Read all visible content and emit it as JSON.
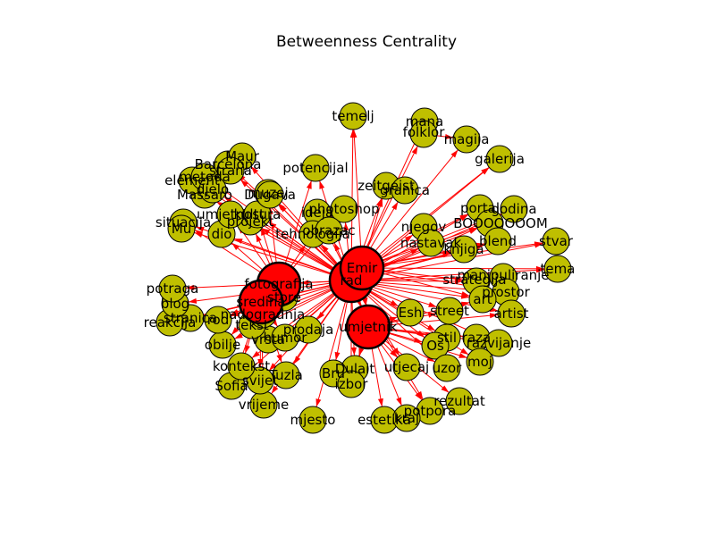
{
  "title": "Betweenness Centrality",
  "colors": {
    "hub_fill": "#ff0000",
    "leaf_fill": "#bfbf00",
    "edge": "#ff0000",
    "outline": "#000000"
  },
  "nodes": [
    {
      "id": "rad",
      "label": "rad",
      "type": "hub"
    },
    {
      "id": "emir",
      "label": "Emir",
      "type": "hub"
    },
    {
      "id": "umjetnik",
      "label": "umjetnik",
      "type": "hub"
    },
    {
      "id": "fotografija",
      "label": "fotografija",
      "type": "hub"
    },
    {
      "id": "sredina",
      "label": "sredina",
      "type": "hub"
    },
    {
      "id": "temelj",
      "label": "temelj",
      "type": "leaf"
    },
    {
      "id": "mana",
      "label": "mana",
      "type": "leaf"
    },
    {
      "id": "folklor",
      "label": "folklor",
      "type": "leaf"
    },
    {
      "id": "magija",
      "label": "magija",
      "type": "leaf"
    },
    {
      "id": "galerija",
      "label": "galerija",
      "type": "leaf"
    },
    {
      "id": "potencijal",
      "label": "potencijal",
      "type": "leaf"
    },
    {
      "id": "zeitgeist",
      "label": "zeitgeist",
      "type": "leaf"
    },
    {
      "id": "granica",
      "label": "granica",
      "type": "leaf"
    },
    {
      "id": "photoshop",
      "label": "photoshop",
      "type": "leaf"
    },
    {
      "id": "ideja",
      "label": "ideja",
      "type": "leaf"
    },
    {
      "id": "tehnologija",
      "label": "tehnologija",
      "type": "leaf"
    },
    {
      "id": "obrazac",
      "label": "obrazac",
      "type": "leaf"
    },
    {
      "id": "portal",
      "label": "portal",
      "type": "leaf"
    },
    {
      "id": "godina",
      "label": "godina",
      "type": "leaf"
    },
    {
      "id": "booom",
      "label": "BOOOOOOOM",
      "type": "leaf"
    },
    {
      "id": "njegov",
      "label": "njegov",
      "type": "leaf"
    },
    {
      "id": "nastavak",
      "label": "nastavak",
      "type": "leaf"
    },
    {
      "id": "knjiga",
      "label": "knjiga",
      "type": "leaf"
    },
    {
      "id": "blend",
      "label": "blend",
      "type": "leaf"
    },
    {
      "id": "stvar",
      "label": "stvar",
      "type": "leaf"
    },
    {
      "id": "tema",
      "label": "tema",
      "type": "leaf"
    },
    {
      "id": "manipuliranje",
      "label": "manipuliranje",
      "type": "leaf"
    },
    {
      "id": "strategija",
      "label": "strategija",
      "type": "leaf"
    },
    {
      "id": "prostor",
      "label": "prostor",
      "type": "leaf"
    },
    {
      "id": "art",
      "label": "art",
      "type": "leaf"
    },
    {
      "id": "artist",
      "label": "artist",
      "type": "leaf"
    },
    {
      "id": "esh",
      "label": "Esh",
      "type": "leaf"
    },
    {
      "id": "street",
      "label": "street",
      "type": "leaf"
    },
    {
      "id": "stil",
      "label": "stil",
      "type": "leaf"
    },
    {
      "id": "razno",
      "label": "raza",
      "type": "leaf"
    },
    {
      "id": "os",
      "label": "Os",
      "type": "leaf"
    },
    {
      "id": "razvijanje",
      "label": "razvijanje",
      "type": "leaf"
    },
    {
      "id": "moj",
      "label": "moj",
      "type": "leaf"
    },
    {
      "id": "utjecaj",
      "label": "utjecaj",
      "type": "leaf"
    },
    {
      "id": "uzor",
      "label": "uzor",
      "type": "leaf"
    },
    {
      "id": "rezultat",
      "label": "rezultat",
      "type": "leaf"
    },
    {
      "id": "potpora",
      "label": "potpora",
      "type": "leaf"
    },
    {
      "id": "estetika",
      "label": "estetika",
      "type": "leaf"
    },
    {
      "id": "kraj",
      "label": "kraj",
      "type": "leaf"
    },
    {
      "id": "dulat",
      "label": "Dulait",
      "type": "leaf"
    },
    {
      "id": "bruno",
      "label": "Bru",
      "type": "leaf"
    },
    {
      "id": "izbor",
      "label": "izbor",
      "type": "leaf"
    },
    {
      "id": "mjesto",
      "label": "mjesto",
      "type": "leaf"
    },
    {
      "id": "vrijeme",
      "label": "vrijeme",
      "type": "leaf"
    },
    {
      "id": "tuzla",
      "label": "Tuzla",
      "type": "leaf"
    },
    {
      "id": "svijet",
      "label": "svijet",
      "type": "leaf"
    },
    {
      "id": "sofia",
      "label": "Sofia",
      "type": "leaf"
    },
    {
      "id": "kontekst",
      "label": "kontekst",
      "type": "leaf"
    },
    {
      "id": "obilje",
      "label": "obilje",
      "type": "leaf"
    },
    {
      "id": "vrsta",
      "label": "vrsta",
      "type": "leaf"
    },
    {
      "id": "humor",
      "label": "humor",
      "type": "leaf"
    },
    {
      "id": "prodaja",
      "label": "prodaja",
      "type": "leaf"
    },
    {
      "id": "store",
      "label": "store",
      "type": "leaf"
    },
    {
      "id": "tekst",
      "label": "tekst",
      "type": "leaf"
    },
    {
      "id": "nadogradnja",
      "label": "nadogradnja",
      "type": "leaf"
    },
    {
      "id": "rod",
      "label": "rod",
      "type": "leaf"
    },
    {
      "id": "strana",
      "label": "stranica",
      "type": "leaf"
    },
    {
      "id": "reakcija",
      "label": "reakcija",
      "type": "leaf"
    },
    {
      "id": "blog",
      "label": "blog",
      "type": "leaf"
    },
    {
      "id": "potraga",
      "label": "potraga",
      "type": "leaf"
    },
    {
      "id": "situacija",
      "label": "situacija",
      "type": "leaf"
    },
    {
      "id": "muz",
      "label": "Mu",
      "type": "leaf"
    },
    {
      "id": "dio",
      "label": "dio",
      "type": "leaf"
    },
    {
      "id": "projekt",
      "label": "projekt",
      "type": "leaf"
    },
    {
      "id": "umjetnost",
      "label": "umjetnost",
      "type": "leaf"
    },
    {
      "id": "kultura",
      "label": "kultura",
      "type": "leaf"
    },
    {
      "id": "massaro",
      "label": "Massaro",
      "type": "leaf"
    },
    {
      "id": "element",
      "label": "element",
      "type": "leaf"
    },
    {
      "id": "metoda",
      "label": "metoda",
      "type": "leaf"
    },
    {
      "id": "barcelona",
      "label": "Barcelona",
      "type": "leaf"
    },
    {
      "id": "maur",
      "label": "Maur",
      "type": "leaf"
    },
    {
      "id": "strana2",
      "label": "strana",
      "type": "leaf"
    },
    {
      "id": "djelo",
      "label": "djelo",
      "type": "leaf"
    },
    {
      "id": "muzej",
      "label": "muzej",
      "type": "leaf"
    },
    {
      "id": "dugava",
      "label": "Dugava",
      "type": "leaf"
    }
  ],
  "edges": [
    [
      "rad",
      "temelj"
    ],
    [
      "rad",
      "mana"
    ],
    [
      "rad",
      "folklor"
    ],
    [
      "rad",
      "magija"
    ],
    [
      "rad",
      "galerija"
    ],
    [
      "rad",
      "potencijal"
    ],
    [
      "rad",
      "zeitgeist"
    ],
    [
      "rad",
      "granica"
    ],
    [
      "rad",
      "photoshop"
    ],
    [
      "rad",
      "ideja"
    ],
    [
      "rad",
      "tehnologija"
    ],
    [
      "rad",
      "obrazac"
    ],
    [
      "rad",
      "portal"
    ],
    [
      "rad",
      "godina"
    ],
    [
      "rad",
      "booom"
    ],
    [
      "rad",
      "njegov"
    ],
    [
      "rad",
      "nastavak"
    ],
    [
      "rad",
      "knjiga"
    ],
    [
      "rad",
      "blend"
    ],
    [
      "rad",
      "stvar"
    ],
    [
      "rad",
      "tema"
    ],
    [
      "rad",
      "manipuliranje"
    ],
    [
      "rad",
      "strategija"
    ],
    [
      "rad",
      "prostor"
    ],
    [
      "rad",
      "art"
    ],
    [
      "rad",
      "artist"
    ],
    [
      "rad",
      "esh"
    ],
    [
      "rad",
      "street"
    ],
    [
      "rad",
      "stil"
    ],
    [
      "rad",
      "os"
    ],
    [
      "rad",
      "razvijanje"
    ],
    [
      "rad",
      "moj"
    ],
    [
      "rad",
      "utjecaj"
    ],
    [
      "rad",
      "uzor"
    ],
    [
      "rad",
      "potpora"
    ],
    [
      "rad",
      "kraj"
    ],
    [
      "rad",
      "dulat"
    ],
    [
      "rad",
      "bruno"
    ],
    [
      "rad",
      "izbor"
    ],
    [
      "rad",
      "mjesto"
    ],
    [
      "rad",
      "vrijeme"
    ],
    [
      "rad",
      "tuzla"
    ],
    [
      "rad",
      "svijet"
    ],
    [
      "rad",
      "sofia"
    ],
    [
      "rad",
      "kontekst"
    ],
    [
      "rad",
      "obilje"
    ],
    [
      "rad",
      "vrsta"
    ],
    [
      "rad",
      "humor"
    ],
    [
      "rad",
      "prodaja"
    ],
    [
      "rad",
      "tekst"
    ],
    [
      "rad",
      "nadogradnja"
    ],
    [
      "rad",
      "rod"
    ],
    [
      "rad",
      "strana"
    ],
    [
      "rad",
      "reakcija"
    ],
    [
      "rad",
      "blog"
    ],
    [
      "rad",
      "potraga"
    ],
    [
      "rad",
      "situacija"
    ],
    [
      "rad",
      "muz"
    ],
    [
      "rad",
      "dio"
    ],
    [
      "rad",
      "projekt"
    ],
    [
      "rad",
      "umjetnost"
    ],
    [
      "rad",
      "kultura"
    ],
    [
      "rad",
      "massaro"
    ],
    [
      "rad",
      "element"
    ],
    [
      "rad",
      "metoda"
    ],
    [
      "rad",
      "barcelona"
    ],
    [
      "rad",
      "maur"
    ],
    [
      "rad",
      "strana2"
    ],
    [
      "rad",
      "djelo"
    ],
    [
      "rad",
      "muzej"
    ],
    [
      "rad",
      "dugava"
    ],
    [
      "emir",
      "temelj"
    ],
    [
      "emir",
      "zeitgeist"
    ],
    [
      "emir",
      "galerija"
    ],
    [
      "emir",
      "godina"
    ],
    [
      "emir",
      "stvar"
    ],
    [
      "emir",
      "tema"
    ],
    [
      "emir",
      "booom"
    ],
    [
      "emir",
      "portal"
    ],
    [
      "emir",
      "blend"
    ],
    [
      "emir",
      "art"
    ],
    [
      "emir",
      "strategija"
    ],
    [
      "emir",
      "prostor"
    ],
    [
      "emir",
      "knjiga"
    ],
    [
      "umjetnik",
      "esh"
    ],
    [
      "umjetnik",
      "street"
    ],
    [
      "umjetnik",
      "stil"
    ],
    [
      "umjetnik",
      "os"
    ],
    [
      "umjetnik",
      "razvijanje"
    ],
    [
      "umjetnik",
      "moj"
    ],
    [
      "umjetnik",
      "utjecaj"
    ],
    [
      "umjetnik",
      "uzor"
    ],
    [
      "umjetnik",
      "rezultat"
    ],
    [
      "umjetnik",
      "potpora"
    ],
    [
      "umjetnik",
      "estetika"
    ],
    [
      "umjetnik",
      "dulat"
    ],
    [
      "umjetnik",
      "izbor"
    ],
    [
      "umjetnik",
      "artist"
    ],
    [
      "umjetnik",
      "art"
    ],
    [
      "umjetnik",
      "razno"
    ],
    [
      "fotografija",
      "photoshop"
    ],
    [
      "fotografija",
      "tehnologija"
    ],
    [
      "fotografija",
      "potencijal"
    ],
    [
      "fotografija",
      "situacija"
    ],
    [
      "fotografija",
      "dio"
    ],
    [
      "fotografija",
      "projekt"
    ],
    [
      "fotografija",
      "umjetnost"
    ],
    [
      "fotografija",
      "kultura"
    ],
    [
      "fotografija",
      "muzej"
    ],
    [
      "sredina",
      "tekst"
    ],
    [
      "sredina",
      "vrsta"
    ],
    [
      "sredina",
      "humor"
    ],
    [
      "sredina",
      "obilje"
    ],
    [
      "sredina",
      "kontekst"
    ],
    [
      "sredina",
      "svijet"
    ],
    [
      "sredina",
      "sofia"
    ],
    [
      "sredina",
      "tuzla"
    ],
    [
      "sredina",
      "vrijeme"
    ],
    [
      "sredina",
      "strana"
    ],
    [
      "sredina",
      "reakcija"
    ],
    [
      "sredina",
      "rod"
    ],
    [
      "rad",
      "emir"
    ],
    [
      "rad",
      "umjetnik"
    ],
    [
      "rad",
      "fotografija"
    ],
    [
      "rad",
      "sredina"
    ],
    [
      "emir",
      "umjetnik"
    ],
    [
      "fotografija",
      "sredina"
    ],
    [
      "folklor",
      "magija"
    ],
    [
      "element",
      "metoda"
    ],
    [
      "maur",
      "barcelona"
    ]
  ]
}
